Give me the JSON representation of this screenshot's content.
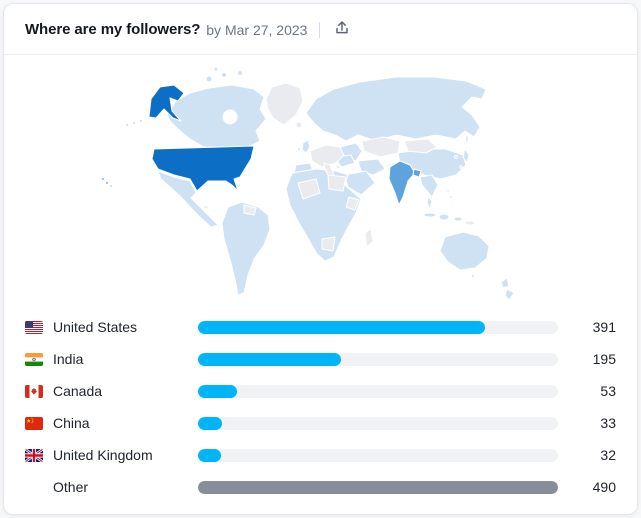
{
  "header": {
    "title": "Where are my followers?",
    "byline": "by Mar 27, 2023"
  },
  "map": {
    "colors": {
      "high": "#0d6ec5",
      "medium": "#5ea3dc",
      "blue": "#cfe2f4",
      "gray": "#e9ebee"
    },
    "highlighted": [
      {
        "country": "United States",
        "shade": "high"
      },
      {
        "country": "India",
        "shade": "medium"
      }
    ]
  },
  "list": {
    "max_value": 490,
    "bar_color": "#00b4f6",
    "other_bar_color": "#878e99",
    "rows": [
      {
        "label": "United States",
        "value": 391,
        "flag": "us",
        "other": false
      },
      {
        "label": "India",
        "value": 195,
        "flag": "in",
        "other": false
      },
      {
        "label": "Canada",
        "value": 53,
        "flag": "ca",
        "other": false
      },
      {
        "label": "China",
        "value": 33,
        "flag": "cn",
        "other": false
      },
      {
        "label": "United Kingdom",
        "value": 32,
        "flag": "gb",
        "other": false
      },
      {
        "label": "Other",
        "value": 490,
        "flag": null,
        "other": true
      }
    ]
  },
  "chart_data": {
    "type": "bar",
    "orientation": "horizontal",
    "title": "Where are my followers?",
    "subtitle": "by Mar 27, 2023",
    "categories": [
      "United States",
      "India",
      "Canada",
      "China",
      "United Kingdom",
      "Other"
    ],
    "values": [
      391,
      195,
      53,
      33,
      32,
      490
    ],
    "bar_colors": [
      "#00b4f6",
      "#00b4f6",
      "#00b4f6",
      "#00b4f6",
      "#00b4f6",
      "#878e99"
    ],
    "scale_max": 490,
    "legend": "none",
    "grid": false,
    "map": {
      "type": "choropleth",
      "highlights": [
        {
          "country": "United States",
          "shade": "high"
        },
        {
          "country": "India",
          "shade": "medium"
        }
      ],
      "default_shades": [
        "light-blue",
        "light-gray"
      ]
    }
  }
}
